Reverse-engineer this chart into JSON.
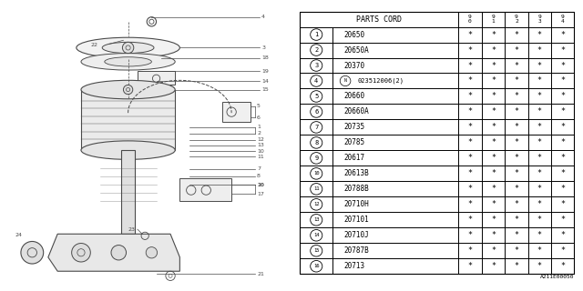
{
  "title": "A211E00050",
  "table_header": "PARTS CORD",
  "col_headers": [
    "9\n0",
    "9\n1",
    "9\n2",
    "9\n3",
    "9\n4"
  ],
  "rows": [
    [
      "1",
      "20650"
    ],
    [
      "2",
      "20650A"
    ],
    [
      "3",
      "20370"
    ],
    [
      "4",
      "N023512006(2)"
    ],
    [
      "5",
      "20660"
    ],
    [
      "6",
      "20660A"
    ],
    [
      "7",
      "20735"
    ],
    [
      "8",
      "20785"
    ],
    [
      "9",
      "20617"
    ],
    [
      "10",
      "20613B"
    ],
    [
      "11",
      "20788B"
    ],
    [
      "12",
      "20710H"
    ],
    [
      "13",
      "207101"
    ],
    [
      "14",
      "20710J"
    ],
    [
      "15",
      "20787B"
    ],
    [
      "16",
      "20713"
    ]
  ],
  "star": "*",
  "bg_color": "#ffffff",
  "line_color": "#4a4a4a",
  "text_color": "#000000"
}
